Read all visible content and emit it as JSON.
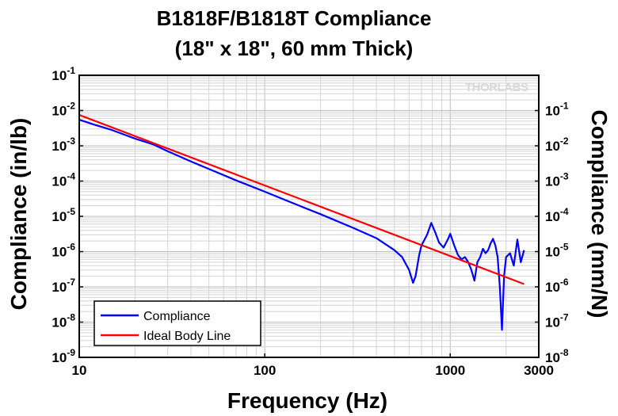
{
  "chart_data": {
    "type": "line",
    "title": [
      "B1818F/B1818T Compliance",
      "(18\" x 18\", 60 mm Thick)"
    ],
    "xlabel": "Frequency (Hz)",
    "ylabel": "Compliance (in/lb)",
    "y2label": "Compliance (mm/N)",
    "xscale": "log",
    "yscale": "log",
    "xlim": [
      10,
      3000
    ],
    "ylim": [
      1e-09,
      0.1
    ],
    "y2lim": [
      1e-08,
      1
    ],
    "grid": true,
    "legend_position": "bottom-left",
    "watermark": "THORLABS",
    "x_ticks": [
      {
        "value": 10,
        "label": "10"
      },
      {
        "value": 100,
        "label": "100"
      },
      {
        "value": 1000,
        "label": "1000"
      },
      {
        "value": 3000,
        "label": "3000"
      }
    ],
    "y_ticks": [
      {
        "value": 0.1,
        "base": "10",
        "exp": "-1"
      },
      {
        "value": 0.01,
        "base": "10",
        "exp": "-2"
      },
      {
        "value": 0.001,
        "base": "10",
        "exp": "-3"
      },
      {
        "value": 0.0001,
        "base": "10",
        "exp": "-4"
      },
      {
        "value": 1e-05,
        "base": "10",
        "exp": "-5"
      },
      {
        "value": 1e-06,
        "base": "10",
        "exp": "-6"
      },
      {
        "value": 1e-07,
        "base": "10",
        "exp": "-7"
      },
      {
        "value": 1e-08,
        "base": "10",
        "exp": "-8"
      },
      {
        "value": 1e-09,
        "base": "10",
        "exp": "-9"
      }
    ],
    "y2_ticks": [
      {
        "value": 0.1,
        "base": "10",
        "exp": "-1"
      },
      {
        "value": 0.01,
        "base": "10",
        "exp": "-2"
      },
      {
        "value": 0.001,
        "base": "10",
        "exp": "-3"
      },
      {
        "value": 0.0001,
        "base": "10",
        "exp": "-4"
      },
      {
        "value": 1e-05,
        "base": "10",
        "exp": "-5"
      },
      {
        "value": 1e-06,
        "base": "10",
        "exp": "-6"
      },
      {
        "value": 1e-07,
        "base": "10",
        "exp": "-7"
      },
      {
        "value": 1e-08,
        "base": "10",
        "exp": "-8"
      }
    ],
    "series": [
      {
        "name": "Compliance",
        "color": "#0000ff",
        "x": [
          10,
          12,
          15,
          20,
          25,
          30,
          40,
          50,
          70,
          100,
          150,
          200,
          300,
          400,
          500,
          550,
          600,
          630,
          650,
          680,
          700,
          750,
          790,
          830,
          870,
          920,
          970,
          1000,
          1050,
          1100,
          1150,
          1200,
          1250,
          1300,
          1350,
          1400,
          1450,
          1500,
          1550,
          1600,
          1650,
          1700,
          1750,
          1800,
          1850,
          1900,
          1950,
          2000,
          2100,
          2200,
          2300,
          2400,
          2500
        ],
        "y": [
          0.0055,
          0.004,
          0.0028,
          0.0016,
          0.0011,
          0.0007,
          0.00036,
          0.00022,
          0.000105,
          5e-05,
          2.1e-05,
          1.15e-05,
          4.7e-06,
          2.4e-06,
          1.1e-06,
          7e-07,
          3e-07,
          1.3e-07,
          2e-07,
          8e-07,
          1.5e-06,
          3e-06,
          6.5e-06,
          3.5e-06,
          1.8e-06,
          1.3e-06,
          2.2e-06,
          3.2e-06,
          1.5e-06,
          8e-07,
          6e-07,
          7e-07,
          5e-07,
          3e-07,
          1.5e-07,
          5e-07,
          7e-07,
          1.2e-06,
          9e-07,
          1.1e-06,
          1.7e-06,
          2.3e-06,
          1.5e-06,
          7e-07,
          1e-07,
          6e-09,
          2e-07,
          7e-07,
          9e-07,
          4e-07,
          2.2e-06,
          5e-07,
          1.1e-06
        ]
      },
      {
        "name": "Ideal Body Line",
        "color": "#ff0000",
        "x": [
          10,
          2500
        ],
        "y": [
          0.0075,
          1.2e-07
        ]
      }
    ]
  }
}
